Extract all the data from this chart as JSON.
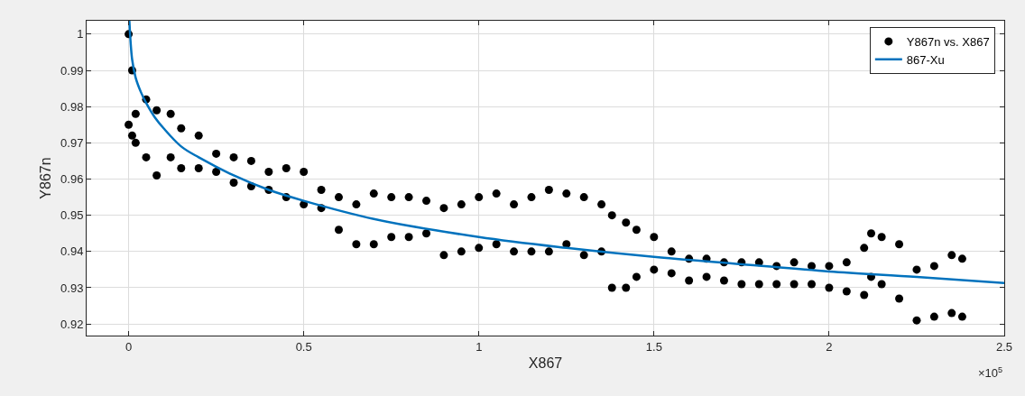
{
  "chart_data": {
    "type": "scatter",
    "xlabel": "X867",
    "ylabel": "Y867n",
    "annotations": [
      "×10$^{5}$"
    ],
    "xlim": [
      -0.12,
      2.5
    ],
    "ylim": [
      0.9168,
      1.0037
    ],
    "xticks": [
      0,
      0.5,
      1,
      1.5,
      2,
      2.5
    ],
    "yticks": [
      0.92,
      0.93,
      0.94,
      0.95,
      0.96,
      0.97,
      0.98,
      0.99,
      1
    ],
    "grid": true,
    "legend": "top right",
    "series": [
      {
        "name": "Y867n vs. X867",
        "marker": "circle",
        "color": "#000000",
        "x": [
          0,
          0,
          0.01,
          0.01,
          0.02,
          0.02,
          0.05,
          0.05,
          0.08,
          0.08,
          0.12,
          0.12,
          0.15,
          0.15,
          0.2,
          0.2,
          0.25,
          0.25,
          0.3,
          0.3,
          0.35,
          0.35,
          0.4,
          0.4,
          0.45,
          0.45,
          0.5,
          0.5,
          0.55,
          0.55,
          0.6,
          0.6,
          0.65,
          0.65,
          0.7,
          0.7,
          0.75,
          0.75,
          0.8,
          0.8,
          0.85,
          0.85,
          0.9,
          0.9,
          0.95,
          0.95,
          1.0,
          1.0,
          1.05,
          1.05,
          1.1,
          1.1,
          1.15,
          1.15,
          1.2,
          1.2,
          1.25,
          1.25,
          1.3,
          1.3,
          1.35,
          1.35,
          1.38,
          1.38,
          1.42,
          1.42,
          1.45,
          1.45,
          1.5,
          1.5,
          1.55,
          1.55,
          1.6,
          1.6,
          1.65,
          1.65,
          1.7,
          1.7,
          1.75,
          1.75,
          1.8,
          1.8,
          1.85,
          1.85,
          1.9,
          1.9,
          1.95,
          1.95,
          2.0,
          2.0,
          2.05,
          2.05,
          2.1,
          2.1,
          2.12,
          2.12,
          2.15,
          2.15,
          2.2,
          2.2,
          2.25,
          2.25,
          2.3,
          2.3,
          2.35,
          2.35,
          2.38,
          2.38
        ],
        "values": [
          1.0,
          0.975,
          0.99,
          0.972,
          0.978,
          0.97,
          0.982,
          0.966,
          0.979,
          0.961,
          0.978,
          0.966,
          0.974,
          0.963,
          0.972,
          0.963,
          0.967,
          0.962,
          0.966,
          0.959,
          0.965,
          0.958,
          0.962,
          0.957,
          0.963,
          0.955,
          0.962,
          0.953,
          0.957,
          0.952,
          0.955,
          0.946,
          0.953,
          0.942,
          0.956,
          0.942,
          0.955,
          0.944,
          0.955,
          0.944,
          0.954,
          0.945,
          0.952,
          0.939,
          0.953,
          0.94,
          0.955,
          0.941,
          0.956,
          0.942,
          0.953,
          0.94,
          0.955,
          0.94,
          0.957,
          0.94,
          0.956,
          0.942,
          0.955,
          0.939,
          0.953,
          0.94,
          0.95,
          0.93,
          0.948,
          0.93,
          0.946,
          0.933,
          0.944,
          0.935,
          0.94,
          0.934,
          0.938,
          0.932,
          0.938,
          0.933,
          0.937,
          0.932,
          0.937,
          0.931,
          0.937,
          0.931,
          0.936,
          0.931,
          0.937,
          0.931,
          0.936,
          0.931,
          0.936,
          0.93,
          0.937,
          0.929,
          0.941,
          0.928,
          0.945,
          0.933,
          0.944,
          0.931,
          0.942,
          0.927,
          0.935,
          0.921,
          0.936,
          0.922,
          0.939,
          0.923,
          0.938,
          0.922
        ]
      },
      {
        "name": "867-Xu",
        "type": "line",
        "line_style": "solid",
        "color": "#0072bd",
        "x": [
          0.002,
          0.01,
          0.02,
          0.035,
          0.05,
          0.075,
          0.1,
          0.15,
          0.2,
          0.3,
          0.4,
          0.5,
          0.7,
          1.0,
          1.25,
          1.5,
          1.75,
          2.0,
          2.25,
          2.5
        ],
        "values": [
          1.0037,
          0.993,
          0.988,
          0.984,
          0.981,
          0.977,
          0.974,
          0.969,
          0.966,
          0.961,
          0.957,
          0.954,
          0.949,
          0.944,
          0.941,
          0.9385,
          0.9365,
          0.9345,
          0.933,
          0.9313
        ]
      }
    ]
  }
}
